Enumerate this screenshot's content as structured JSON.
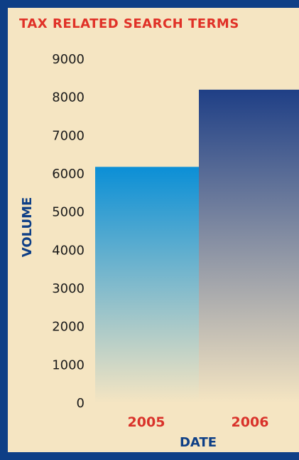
{
  "chart_data": {
    "type": "bar",
    "title": "TAX RELATED SEARCH TERMS",
    "xlabel": "DATE",
    "ylabel": "VOLUME",
    "categories": [
      "2005",
      "2006"
    ],
    "values": [
      6180,
      8200
    ],
    "ylim": [
      0,
      9000
    ],
    "yticks": [
      "0",
      "1000",
      "2000",
      "3000",
      "4000",
      "5000",
      "6000",
      "7000",
      "8000",
      "9000"
    ],
    "grid": false,
    "colors": {
      "title": "#e03127",
      "category_labels": "#d9322a",
      "axis_titles": "#0e3f86",
      "tick_labels": "#1a1a1a",
      "bar_2005_top": "#0b8fd6",
      "bar_2006_top": "#1f3f86",
      "bar_bottom": "#f5e5c2"
    }
  }
}
